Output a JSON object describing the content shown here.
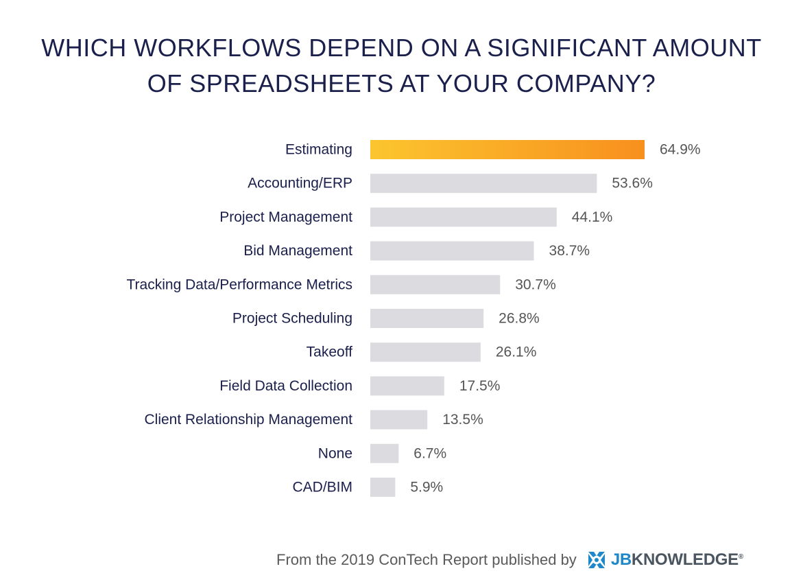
{
  "chart_data": {
    "type": "bar",
    "orientation": "horizontal",
    "title_lines": [
      "WHICH WORKFLOWS DEPEND ON A SIGNIFICANT AMOUNT",
      "OF SPREADSHEETS AT YOUR COMPANY?"
    ],
    "categories": [
      "Estimating",
      "Accounting/ERP",
      "Project Management",
      "Bid Management",
      "Tracking Data/Performance Metrics",
      "Project Scheduling",
      "Takeoff",
      "Field Data Collection",
      "Client Relationship Management",
      "None",
      "CAD/BIM"
    ],
    "values": [
      64.9,
      53.6,
      44.1,
      38.7,
      30.7,
      26.8,
      26.1,
      17.5,
      13.5,
      6.7,
      5.9
    ],
    "value_labels": [
      "64.9%",
      "53.6%",
      "44.1%",
      "38.7%",
      "30.7%",
      "26.8%",
      "26.1%",
      "17.5%",
      "13.5%",
      "6.7%",
      "5.9%"
    ],
    "highlight_index": 0,
    "colors": {
      "highlight_start": "#fcc52e",
      "highlight_end": "#f7901e",
      "bar": "#dcdbe0",
      "category_text": "#1a1f4b",
      "value_text": "#555555"
    },
    "grid": false,
    "legend": "none"
  },
  "footer": {
    "credit": "From the 2019 ConTech Report published by",
    "logo_jb": "JB",
    "logo_rest": "KNOWLEDGE",
    "logo_mark": "®"
  }
}
